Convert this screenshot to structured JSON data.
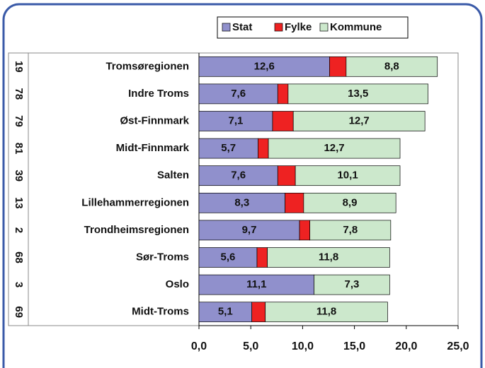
{
  "chart_data": {
    "type": "stacked-barh",
    "categories": [
      "Tromsøregionen",
      "Indre Troms",
      "Øst-Finnmark",
      "Midt-Finnmark",
      "Salten",
      "Lillehammerregionen",
      "Trondheimsregionen",
      "Sør-Troms",
      "Oslo",
      "Midt-Troms"
    ],
    "ranks": [
      "19",
      "78",
      "79",
      "81",
      "39",
      "13",
      "2",
      "68",
      "3",
      "69"
    ],
    "series": [
      {
        "name": "Stat",
        "color": "#9090cc",
        "values": [
          12.6,
          7.6,
          7.1,
          5.7,
          7.6,
          8.3,
          9.7,
          5.6,
          11.1,
          5.1
        ],
        "value_labels": [
          "12,6",
          "7,6",
          "7,1",
          "5,7",
          "7,6",
          "8,3",
          "9,7",
          "5,6",
          "11,1",
          "5,1"
        ]
      },
      {
        "name": "Fylke",
        "color": "#ee2222",
        "values": [
          1.6,
          1.0,
          2.0,
          1.0,
          1.7,
          1.8,
          1.0,
          1.0,
          0,
          1.3
        ]
      },
      {
        "name": "Kommune",
        "color": "#cce8cc",
        "values": [
          8.8,
          13.5,
          12.7,
          12.7,
          10.1,
          8.9,
          7.8,
          11.8,
          7.3,
          11.8
        ],
        "value_labels": [
          "8,8",
          "13,5",
          "12,7",
          "12,7",
          "10,1",
          "8,9",
          "7,8",
          "11,8",
          "7,3",
          "11,8"
        ]
      }
    ],
    "xlim": [
      0,
      25
    ],
    "xticks": [
      {
        "value": 0,
        "label": "0,0"
      },
      {
        "value": 5,
        "label": "5,0"
      },
      {
        "value": 10,
        "label": "10,0"
      },
      {
        "value": 15,
        "label": "15,0"
      },
      {
        "value": 20,
        "label": "20,0"
      },
      {
        "value": 25,
        "label": "25,0"
      }
    ],
    "legend": "top"
  }
}
